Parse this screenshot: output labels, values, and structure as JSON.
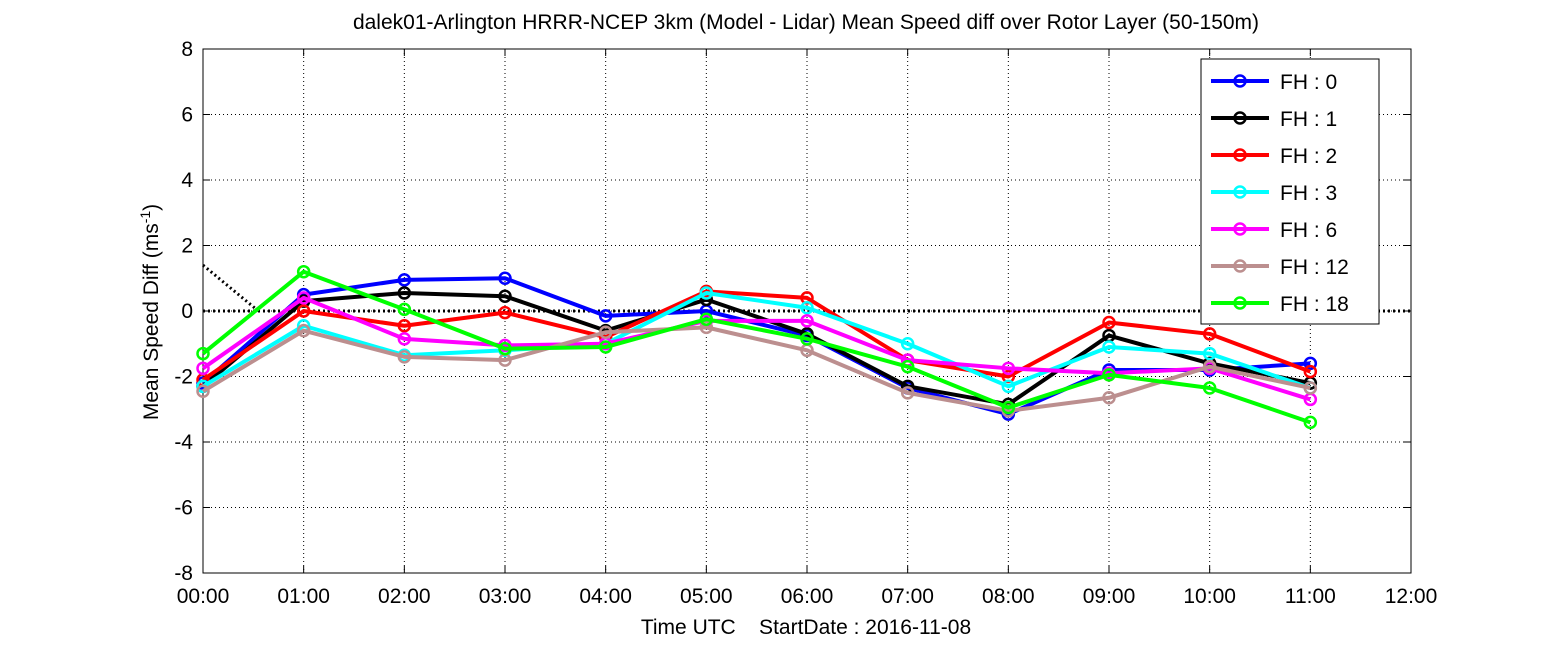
{
  "chart_data": {
    "type": "line",
    "title": "dalek01-Arlington HRRR-NCEP 3km (Model - Lidar) Mean Speed diff over Rotor Layer (50-150m)",
    "xlabel": "Time UTC    StartDate : 2016-11-08",
    "ylabel_main": "Mean Speed Diff (ms",
    "ylabel_sup": "-1",
    "ylabel_tail": ")",
    "x_categories": [
      "00:00",
      "01:00",
      "02:00",
      "03:00",
      "04:00",
      "05:00",
      "06:00",
      "07:00",
      "08:00",
      "09:00",
      "10:00",
      "11:00",
      "12:00"
    ],
    "xlim": [
      0,
      12
    ],
    "ylim": [
      -8,
      8
    ],
    "yticks": [
      -8,
      -6,
      -4,
      -2,
      0,
      2,
      4,
      6,
      8
    ],
    "grid": true,
    "legend_position": "top-right",
    "series": [
      {
        "name": "FH : 0",
        "color": "#0000ff",
        "x": [
          0,
          1,
          2,
          3,
          4,
          5,
          6,
          7,
          8,
          9,
          10,
          11
        ],
        "values": [
          -2.2,
          0.5,
          0.95,
          1.0,
          -0.15,
          0.0,
          -0.75,
          -2.35,
          -3.15,
          -1.8,
          -1.8,
          -1.6
        ]
      },
      {
        "name": "FH : 1",
        "color": "#000000",
        "x": [
          0,
          1,
          2,
          3,
          4,
          5,
          6,
          7,
          8,
          9,
          10,
          11
        ],
        "values": [
          -2.3,
          0.3,
          0.55,
          0.45,
          -0.6,
          0.35,
          -0.7,
          -2.3,
          -2.85,
          -0.75,
          -1.6,
          -2.2
        ]
      },
      {
        "name": "FH : 2",
        "color": "#ff0000",
        "x": [
          0,
          1,
          2,
          3,
          4,
          5,
          6,
          7,
          8,
          9,
          10,
          11
        ],
        "values": [
          -2.1,
          0.0,
          -0.45,
          -0.05,
          -0.8,
          0.6,
          0.4,
          -1.5,
          -2.0,
          -0.35,
          -0.7,
          -1.85
        ]
      },
      {
        "name": "FH : 3",
        "color": "#00ffff",
        "x": [
          0,
          1,
          2,
          3,
          4,
          5,
          6,
          7,
          8,
          9,
          10,
          11
        ],
        "values": [
          -2.3,
          -0.45,
          -1.35,
          -1.2,
          -1.0,
          0.55,
          0.1,
          -1.0,
          -2.3,
          -1.1,
          -1.3,
          -2.35
        ]
      },
      {
        "name": "FH : 6",
        "color": "#ff00ff",
        "x": [
          0,
          1,
          2,
          3,
          4,
          5,
          6,
          7,
          8,
          9,
          10,
          11
        ],
        "values": [
          -1.75,
          0.4,
          -0.85,
          -1.05,
          -1.0,
          -0.3,
          -0.3,
          -1.5,
          -1.75,
          -1.9,
          -1.75,
          -2.7
        ]
      },
      {
        "name": "FH : 12",
        "color": "#bc8f8f",
        "x": [
          0,
          1,
          2,
          3,
          4,
          5,
          6,
          7,
          8,
          9,
          10,
          11
        ],
        "values": [
          -2.45,
          -0.6,
          -1.4,
          -1.5,
          -0.65,
          -0.5,
          -1.2,
          -2.5,
          -3.05,
          -2.65,
          -1.7,
          -2.35
        ]
      },
      {
        "name": "FH : 18",
        "color": "#00ff00",
        "x": [
          0,
          1,
          2,
          3,
          4,
          5,
          6,
          7,
          8,
          9,
          10,
          11
        ],
        "values": [
          -1.3,
          1.2,
          0.05,
          -1.15,
          -1.1,
          -0.25,
          -0.85,
          -1.7,
          -2.95,
          -1.95,
          -2.35,
          -3.4
        ]
      }
    ],
    "reference_lines": [
      {
        "style": "dotted",
        "color": "#000000",
        "x": [
          0,
          12
        ],
        "y": [
          0,
          0
        ]
      },
      {
        "style": "dotted",
        "color": "#000000",
        "x": [
          0,
          0.55
        ],
        "y": [
          1.4,
          0.0
        ]
      }
    ]
  }
}
